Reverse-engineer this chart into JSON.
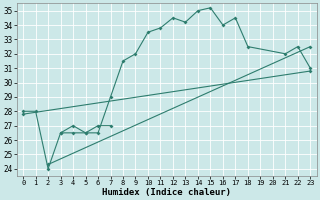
{
  "xlabel": "Humidex (Indice chaleur)",
  "bg_color": "#cce8e8",
  "grid_color": "#ffffff",
  "line_color": "#2e7d6e",
  "xlim": [
    -0.5,
    23.5
  ],
  "ylim": [
    23.5,
    35.5
  ],
  "yticks": [
    24,
    25,
    26,
    27,
    28,
    29,
    30,
    31,
    32,
    33,
    34,
    35
  ],
  "xticks": [
    0,
    1,
    2,
    3,
    4,
    5,
    6,
    7,
    8,
    9,
    10,
    11,
    12,
    13,
    14,
    15,
    16,
    17,
    18,
    19,
    20,
    21,
    22,
    23
  ],
  "curve_x": [
    0,
    1,
    2,
    3,
    4,
    5,
    6,
    7,
    8,
    9,
    10,
    11,
    12,
    13,
    14,
    15,
    16,
    17,
    18,
    21,
    22,
    23
  ],
  "curve_y": [
    28.0,
    28.0,
    24.0,
    26.5,
    26.5,
    26.5,
    26.5,
    29.0,
    31.5,
    32.0,
    33.5,
    33.8,
    34.5,
    34.2,
    35.0,
    35.2,
    34.0,
    34.5,
    32.5,
    32.0,
    32.5,
    31.0
  ],
  "line2_x": [
    2,
    23
  ],
  "line2_y": [
    24.3,
    32.5
  ],
  "line3_x": [
    0,
    23
  ],
  "line3_y": [
    27.8,
    30.8
  ],
  "regr2_mid_x": [
    3,
    4,
    5,
    6,
    7
  ],
  "regr2_mid_y": [
    26.5,
    27.0,
    26.5,
    27.0,
    27.0
  ]
}
